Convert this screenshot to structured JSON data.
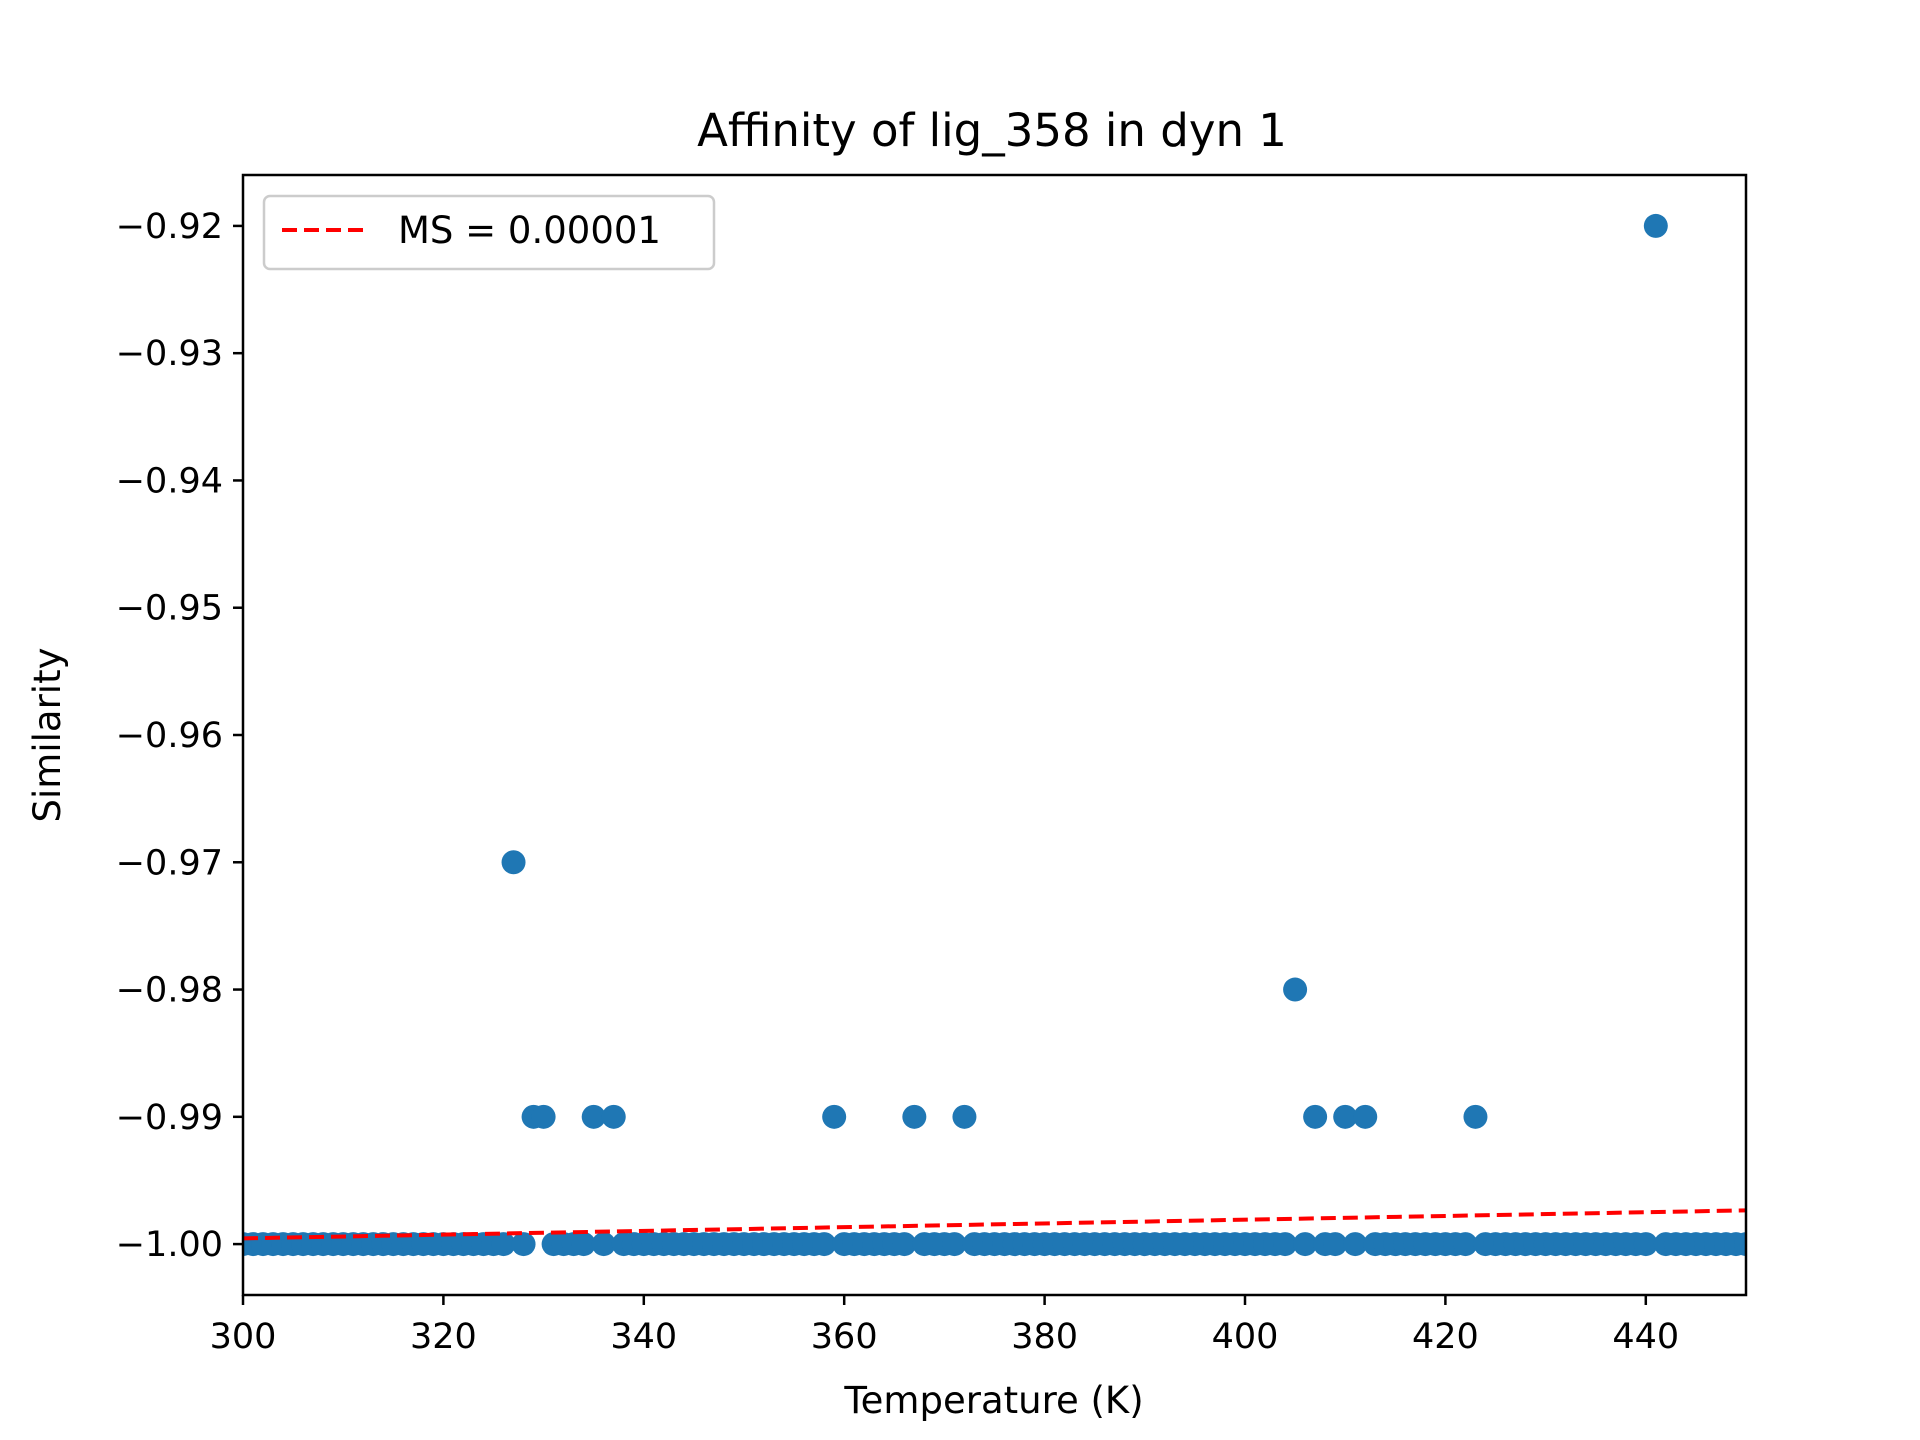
{
  "chart_data": {
    "type": "scatter",
    "title": "Affinity of lig_358 in dyn 1",
    "xlabel": "Temperature (K)",
    "ylabel": "Similarity",
    "xlim": [
      300,
      450
    ],
    "ylim": [
      -1.004,
      -0.916
    ],
    "xticks": [
      300,
      320,
      340,
      360,
      380,
      400,
      420,
      440
    ],
    "xtick_labels": [
      "300",
      "320",
      "340",
      "360",
      "380",
      "400",
      "420",
      "440"
    ],
    "yticks": [
      -1.0,
      -0.99,
      -0.98,
      -0.97,
      -0.96,
      -0.95,
      -0.94,
      -0.93,
      -0.92
    ],
    "ytick_labels": [
      "−1.00",
      "−0.99",
      "−0.98",
      "−0.97",
      "−0.96",
      "−0.95",
      "−0.94",
      "−0.93",
      "−0.92"
    ],
    "grid": false,
    "legend_position": "top-left",
    "point_color": "#1f77b4",
    "line_color": "#ff0000",
    "series": [
      {
        "kind": "scatter",
        "points": [
          {
            "x": 327,
            "y": -0.97
          },
          {
            "x": 329,
            "y": -0.99
          },
          {
            "x": 330,
            "y": -0.99
          },
          {
            "x": 335,
            "y": -0.99
          },
          {
            "x": 337,
            "y": -0.99
          },
          {
            "x": 359,
            "y": -0.99
          },
          {
            "x": 367,
            "y": -0.99
          },
          {
            "x": 372,
            "y": -0.99
          },
          {
            "x": 405,
            "y": -0.98
          },
          {
            "x": 407,
            "y": -0.99
          },
          {
            "x": 410,
            "y": -0.99
          },
          {
            "x": 412,
            "y": -0.99
          },
          {
            "x": 423,
            "y": -0.99
          },
          {
            "x": 441,
            "y": -0.92
          }
        ],
        "baseline_y": -1.0,
        "baseline_x_range": [
          300,
          450
        ],
        "baseline_gaps": [
          327,
          329,
          330,
          335,
          337,
          359,
          367,
          372,
          405,
          407,
          410,
          412,
          423,
          441
        ]
      },
      {
        "kind": "line",
        "name": "MS = 0.00001",
        "style": "dashed",
        "x": [
          300,
          450
        ],
        "y": [
          -0.99955,
          -0.99735
        ]
      }
    ]
  }
}
